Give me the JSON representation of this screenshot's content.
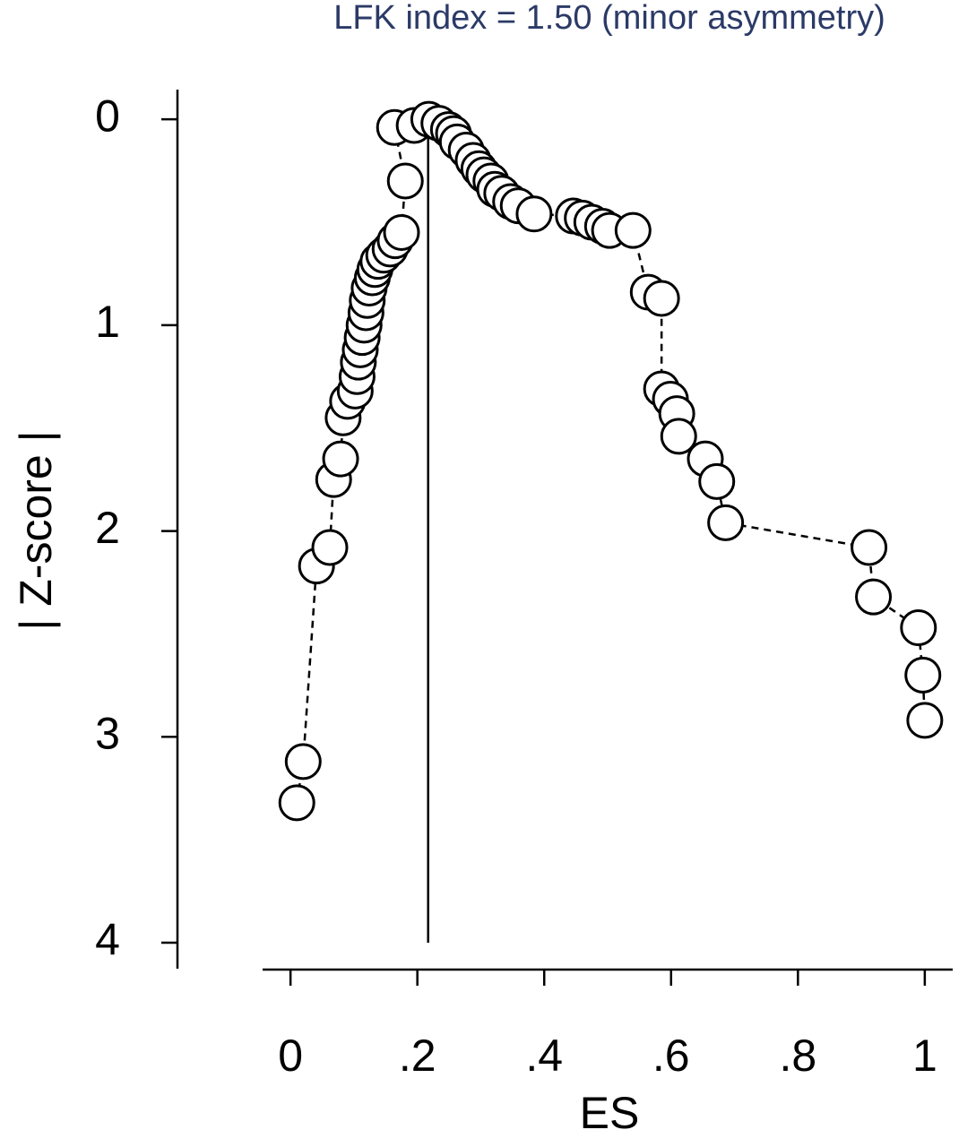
{
  "chart_data": {
    "type": "scatter",
    "title": "LFK index = 1.50 (minor asymmetry)",
    "x_label": "ES",
    "y_label": "| Z-score |",
    "y_inverted": true,
    "xlim": [
      -0.044,
      1.044
    ],
    "ylim": [
      -0.144,
      4.126
    ],
    "xticks": [
      0,
      {
        "value": 0.2,
        "label": ".2"
      },
      {
        "value": 0.4,
        "label": ".4"
      },
      {
        "value": 0.6,
        "label": ".6"
      },
      {
        "value": 0.8,
        "label": ".8"
      },
      1
    ],
    "yticks": [
      0,
      1,
      2,
      3,
      4
    ],
    "vline_x": 0.217,
    "color": "#ffffff",
    "x": [
      0.01,
      0.02,
      0.041,
      0.062,
      0.068,
      0.079,
      0.083,
      0.09,
      0.102,
      0.105,
      0.107,
      0.11,
      0.113,
      0.116,
      0.119,
      0.121,
      0.124,
      0.129,
      0.133,
      0.138,
      0.147,
      0.157,
      0.165,
      0.175,
      0.181,
      0.164,
      0.195,
      0.218,
      0.234,
      0.249,
      0.257,
      0.263,
      0.277,
      0.288,
      0.297,
      0.305,
      0.316,
      0.322,
      0.333,
      0.347,
      0.359,
      0.384,
      0.446,
      0.46,
      0.475,
      0.492,
      0.503,
      0.54,
      0.564,
      0.585,
      0.585,
      0.599,
      0.609,
      0.612,
      0.654,
      0.672,
      0.686,
      0.912,
      0.919,
      0.99,
      0.997,
      1.0
    ],
    "values": [
      3.32,
      3.12,
      2.17,
      2.08,
      1.75,
      1.65,
      1.45,
      1.37,
      1.32,
      1.25,
      1.18,
      1.12,
      1.06,
      1.0,
      0.94,
      0.88,
      0.82,
      0.77,
      0.73,
      0.69,
      0.66,
      0.63,
      0.59,
      0.55,
      0.3,
      0.04,
      0.03,
      0.0,
      0.02,
      0.05,
      0.07,
      0.11,
      0.15,
      0.2,
      0.24,
      0.27,
      0.3,
      0.34,
      0.36,
      0.4,
      0.42,
      0.46,
      0.47,
      0.48,
      0.5,
      0.52,
      0.54,
      0.54,
      0.84,
      0.87,
      1.31,
      1.36,
      1.43,
      1.54,
      1.65,
      1.76,
      1.96,
      2.08,
      2.32,
      2.47,
      2.7,
      2.92
    ]
  }
}
